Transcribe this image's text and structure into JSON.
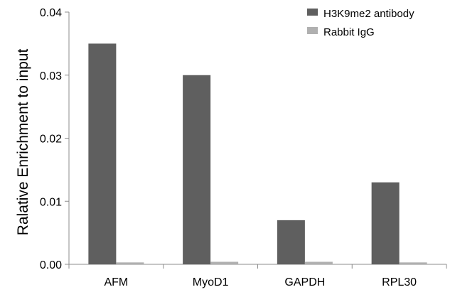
{
  "chart_data": {
    "type": "bar",
    "title": "",
    "xlabel": "",
    "ylabel": "Ralative Enrichment to input",
    "categories": [
      "AFM",
      "MyoD1",
      "GAPDH",
      "RPL30"
    ],
    "series": [
      {
        "name": "H3K9me2 antibody",
        "color": "#5f5f5f",
        "values": [
          0.035,
          0.03,
          0.007,
          0.013
        ]
      },
      {
        "name": "Rabbit IgG",
        "color": "#b0b0b0",
        "values": [
          0.0003,
          0.0004,
          0.0004,
          0.0003
        ]
      }
    ],
    "ylim": [
      0,
      0.04
    ],
    "yticks": [
      "0.00",
      "0.01",
      "0.02",
      "0.03",
      "0.04"
    ],
    "grid": false,
    "legend_position": "top-right"
  }
}
